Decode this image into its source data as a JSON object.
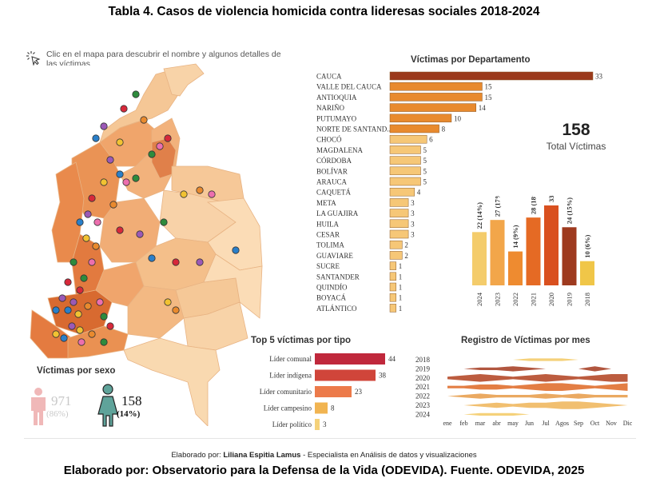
{
  "page_title": "Tabla 4. Casos de violencia homicida contra lideresas sociales 2018-2024",
  "hint_text": "Clic en el mapa para descubrir el nombre y algunos detalles de las víctimas",
  "total": {
    "value": "158",
    "label": "Total Víctimas"
  },
  "sex": {
    "title": "Víctimas por sexo",
    "male": {
      "count": "971",
      "pct": "(86%)"
    },
    "female": {
      "count": "158",
      "pct": "(14%)"
    }
  },
  "credit_line1_prefix": "Elaborado por: ",
  "credit_line1_name": "Liliana Espitia Lamus",
  "credit_line1_suffix": " - Especialista en Análisis de datos y visualizaciones",
  "credit_line2": "Elaborado por: Observatorio para la Defensa de la Vida (ODEVIDA). Fuente. ODEVIDA, 2025",
  "colors": {
    "dark": "#9b3a1c",
    "mid": "#e88a2e",
    "light": "#f6c777",
    "pale": "#f9d9a4",
    "type_red": "#c0283c",
    "map_land": "#f4c08f"
  },
  "chart_data": [
    {
      "type": "bar",
      "orientation": "horizontal",
      "title": "Víctimas por Departamento",
      "categories": [
        "CAUCA",
        "VALLE DEL CAUCA",
        "ANTIOQUIA",
        "NARIÑO",
        "PUTUMAYO",
        "NORTE DE SANTAND..",
        "CHOCÓ",
        "MAGDALENA",
        "CÓRDOBA",
        "BOLÍVAR",
        "ARAUCA",
        "CAQUETÁ",
        "META",
        "LA GUAJIRA",
        "HUILA",
        "CESAR",
        "TOLIMA",
        "GUAVIARE",
        "SUCRE",
        "SANTANDER",
        "QUINDÍO",
        "BOYACÁ",
        "ATLÁNTICO"
      ],
      "values": [
        33,
        15,
        15,
        14,
        10,
        8,
        6,
        5,
        5,
        5,
        5,
        4,
        3,
        3,
        3,
        3,
        2,
        2,
        1,
        1,
        1,
        1,
        1
      ]
    },
    {
      "type": "bar",
      "orientation": "vertical",
      "title": "",
      "categories": [
        "2024",
        "2023",
        "2022",
        "2021",
        "2020",
        "2019",
        "2018"
      ],
      "values": [
        22,
        27,
        14,
        28,
        33,
        24,
        10
      ],
      "labels": [
        "22 (14%)",
        "27 (17%)",
        "14 (9%)",
        "28 (18%)",
        "33 (21%)",
        "24 (15%)",
        "10 (6%)"
      ],
      "colors": [
        "#f4cc6b",
        "#f2a64a",
        "#ee8b30",
        "#e56a24",
        "#d9501f",
        "#9e3a1f",
        "#f0c648"
      ]
    },
    {
      "type": "bar",
      "orientation": "horizontal",
      "title": "Top 5 víctimas por tipo",
      "categories": [
        "Líder comunal",
        "Líder indígena",
        "Líder comunitario",
        "Líder campesino",
        "Líder político"
      ],
      "values": [
        44,
        38,
        23,
        8,
        3
      ],
      "colors": [
        "#c0283c",
        "#d0453a",
        "#ec7a4a",
        "#f1b451",
        "#f5d27a"
      ]
    },
    {
      "type": "area",
      "title": "Registro de Víctimas por mes",
      "years": [
        "2018",
        "2019",
        "2020",
        "2021",
        "2022",
        "2023",
        "2024"
      ],
      "months": [
        "ene",
        "feb",
        "mar",
        "abr",
        "may",
        "Jun",
        "Jul",
        "Agos",
        "Sep",
        "Oct",
        "Nov",
        "Dic"
      ],
      "series": [
        {
          "values": [
            0,
            0,
            0,
            0,
            0,
            1,
            1,
            1,
            0,
            0,
            0,
            0
          ]
        },
        {
          "values": [
            0,
            0,
            1,
            1,
            2,
            1,
            0,
            0,
            0,
            2,
            0,
            0
          ]
        },
        {
          "values": [
            1,
            2,
            3,
            2,
            1,
            2,
            3,
            2,
            1,
            2,
            3,
            3
          ]
        },
        {
          "values": [
            1,
            1,
            2,
            2,
            1,
            2,
            3,
            3,
            2,
            1,
            2,
            3
          ]
        },
        {
          "values": [
            0,
            1,
            2,
            1,
            1,
            1,
            2,
            1,
            2,
            1,
            1,
            1
          ]
        },
        {
          "values": [
            0,
            0,
            1,
            2,
            1,
            2,
            2,
            3,
            3,
            2,
            1,
            0
          ]
        },
        {
          "values": [
            0,
            0,
            1,
            1,
            1,
            0,
            0,
            0,
            0,
            0,
            0,
            0
          ]
        }
      ]
    }
  ]
}
